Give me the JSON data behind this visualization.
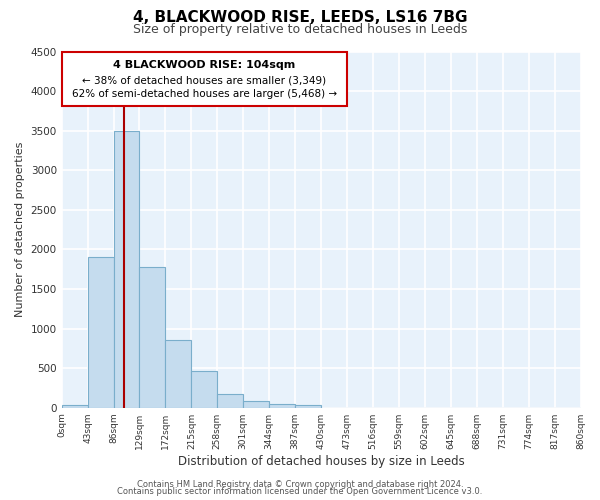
{
  "title": "4, BLACKWOOD RISE, LEEDS, LS16 7BG",
  "subtitle": "Size of property relative to detached houses in Leeds",
  "xlabel": "Distribution of detached houses by size in Leeds",
  "ylabel": "Number of detached properties",
  "bar_color": "#c5dcee",
  "bar_edge_color": "#7aaecb",
  "bin_edges": [
    0,
    43,
    86,
    129,
    172,
    215,
    258,
    301,
    344,
    387,
    430,
    473,
    516,
    559,
    602,
    645,
    688,
    731,
    774,
    817,
    860
  ],
  "bar_heights": [
    40,
    1900,
    3500,
    1780,
    860,
    460,
    175,
    90,
    45,
    30,
    0,
    0,
    0,
    0,
    0,
    0,
    0,
    0,
    0,
    0
  ],
  "tick_labels": [
    "0sqm",
    "43sqm",
    "86sqm",
    "129sqm",
    "172sqm",
    "215sqm",
    "258sqm",
    "301sqm",
    "344sqm",
    "387sqm",
    "430sqm",
    "473sqm",
    "516sqm",
    "559sqm",
    "602sqm",
    "645sqm",
    "688sqm",
    "731sqm",
    "774sqm",
    "817sqm",
    "860sqm"
  ],
  "ylim": [
    0,
    4500
  ],
  "yticks": [
    0,
    500,
    1000,
    1500,
    2000,
    2500,
    3000,
    3500,
    4000,
    4500
  ],
  "vline_x": 104,
  "vline_color": "#aa0000",
  "annotation_text_line1": "4 BLACKWOOD RISE: 104sqm",
  "annotation_text_line2": "← 38% of detached houses are smaller (3,349)",
  "annotation_text_line3": "62% of semi-detached houses are larger (5,468) →",
  "annotation_box_edge_color": "#cc0000",
  "footer_line1": "Contains HM Land Registry data © Crown copyright and database right 2024.",
  "footer_line2": "Contains public sector information licensed under the Open Government Licence v3.0.",
  "background_color": "#e8f2fb",
  "grid_color": "white",
  "fig_bg_color": "white"
}
